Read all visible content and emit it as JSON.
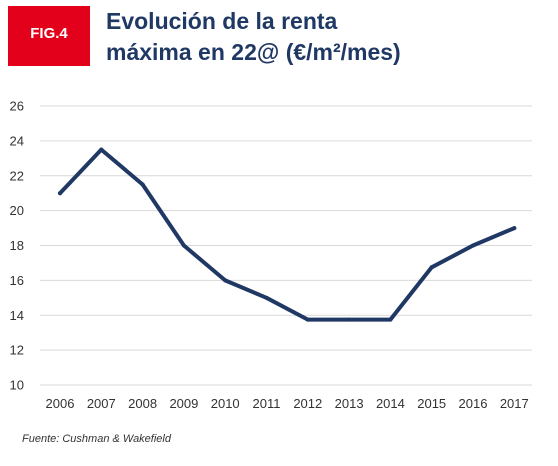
{
  "header": {
    "badge": "FIG.4",
    "title_line1": "Evolución de la renta",
    "title_line2": "máxima en 22@ (€/m²/mes)"
  },
  "source": "Fuente: Cushman & Wakefield",
  "colors": {
    "badge_bg": "#e2001a",
    "title": "#1f3864",
    "line": "#1f3864",
    "grid": "#d9d9d9"
  },
  "chart_data": {
    "type": "line",
    "title": "Evolución de la renta máxima en 22@ (€/m²/mes)",
    "xlabel": "",
    "ylabel": "",
    "ylim": [
      10,
      26
    ],
    "yticks": [
      10,
      12,
      14,
      16,
      18,
      20,
      22,
      24,
      26
    ],
    "grid": "horizontal",
    "legend": "none",
    "categories": [
      "2006",
      "2007",
      "2008",
      "2009",
      "2010",
      "2011",
      "2012",
      "2013",
      "2014",
      "2015",
      "2016",
      "2017"
    ],
    "series": [
      {
        "values": [
          21,
          23.5,
          21.5,
          18,
          16,
          15,
          13.75,
          13.75,
          13.75,
          16.75,
          18,
          19
        ]
      }
    ]
  }
}
